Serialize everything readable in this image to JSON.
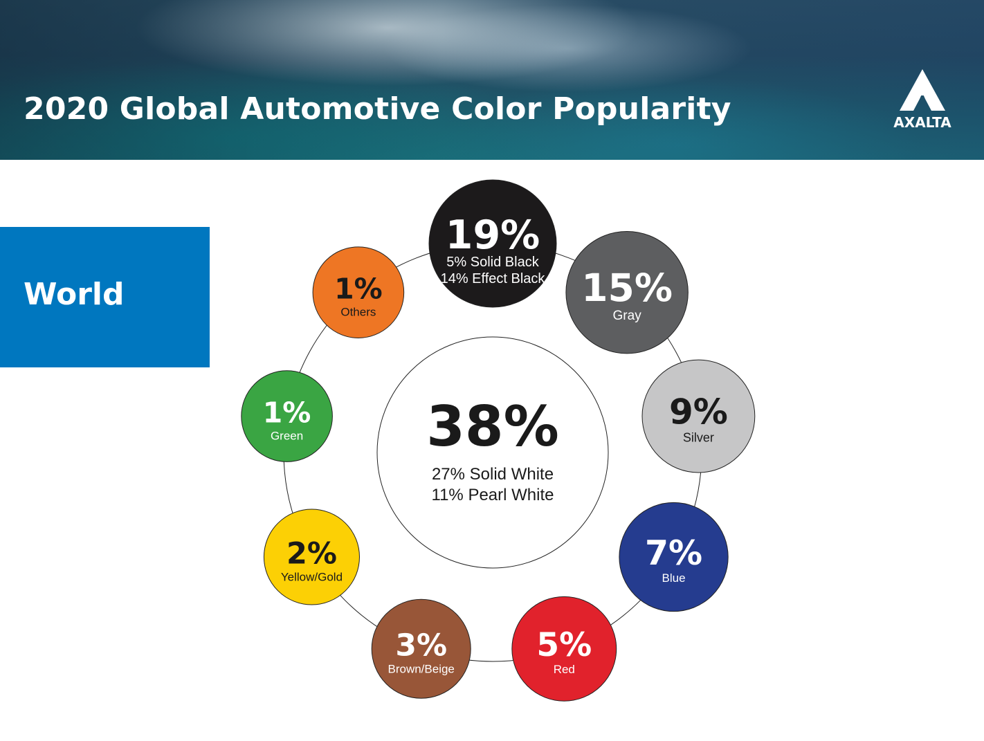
{
  "header": {
    "title": "2020 Global Automotive Color Popularity",
    "logo_text": "AXALTA"
  },
  "region": {
    "label": "World"
  },
  "colors": {
    "region_box": "#0077bf",
    "ring_line": "#222222"
  },
  "chart_data": {
    "type": "pie",
    "title": "2020 Global Automotive Color Popularity",
    "region": "World",
    "center": {
      "color_name": "White",
      "value": 38,
      "value_label": "38%",
      "lines": [
        "27% Solid White",
        "11% Pearl White"
      ],
      "fill": "#ffffff",
      "text_color": "#1a1a1a"
    },
    "slices": [
      {
        "name": "Black",
        "value": 19,
        "value_label": "19%",
        "lines": [
          "5% Solid Black",
          "14% Effect Black"
        ],
        "fill": "#1c1a1b",
        "text_color": "#ffffff"
      },
      {
        "name": "Gray",
        "value": 15,
        "value_label": "15%",
        "lines": [
          "Gray"
        ],
        "fill": "#5d5e60",
        "text_color": "#ffffff"
      },
      {
        "name": "Silver",
        "value": 9,
        "value_label": "9%",
        "lines": [
          "Silver"
        ],
        "fill": "#c6c6c7",
        "text_color": "#1a1a1a"
      },
      {
        "name": "Blue",
        "value": 7,
        "value_label": "7%",
        "lines": [
          "Blue"
        ],
        "fill": "#253c8f",
        "text_color": "#ffffff"
      },
      {
        "name": "Red",
        "value": 5,
        "value_label": "5%",
        "lines": [
          "Red"
        ],
        "fill": "#e1222c",
        "text_color": "#ffffff"
      },
      {
        "name": "Brown/Beige",
        "value": 3,
        "value_label": "3%",
        "lines": [
          "Brown/Beige"
        ],
        "fill": "#985638",
        "text_color": "#ffffff"
      },
      {
        "name": "Yellow/Gold",
        "value": 2,
        "value_label": "2%",
        "lines": [
          "Yellow/Gold"
        ],
        "fill": "#fcd005",
        "text_color": "#1a1a1a"
      },
      {
        "name": "Green",
        "value": 1,
        "value_label": "1%",
        "lines": [
          "Green"
        ],
        "fill": "#3aa543",
        "text_color": "#ffffff"
      },
      {
        "name": "Others",
        "value": 1,
        "value_label": "1%",
        "lines": [
          "Others"
        ],
        "fill": "#ee7624",
        "text_color": "#1a1a1a"
      }
    ]
  }
}
